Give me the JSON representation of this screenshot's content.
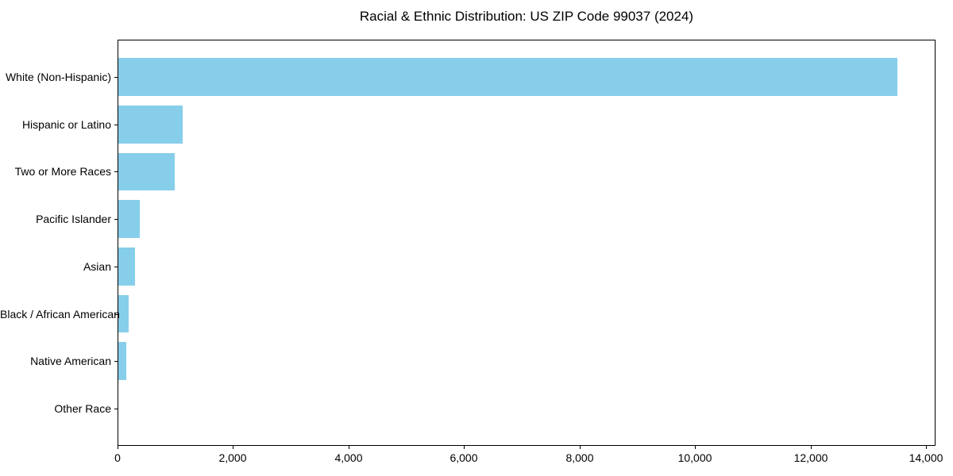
{
  "chart_data": {
    "type": "bar",
    "orientation": "horizontal",
    "title": "Racial & Ethnic Distribution: US ZIP Code 99037 (2024)",
    "categories": [
      "White (Non-Hispanic)",
      "Hispanic or Latino",
      "Two or More Races",
      "Pacific Islander",
      "Asian",
      "Black / African American",
      "Native American",
      "Other Race"
    ],
    "values": [
      13485,
      1120,
      970,
      370,
      295,
      185,
      140,
      0
    ],
    "xlabel": "",
    "ylabel": "",
    "xlim": [
      0,
      14159
    ],
    "xticks": [
      0,
      2000,
      4000,
      6000,
      8000,
      10000,
      12000,
      14000
    ],
    "xtick_labels": [
      "0",
      "2,000",
      "4,000",
      "6,000",
      "8,000",
      "10,000",
      "12,000",
      "14,000"
    ],
    "bar_color": "#87CEEB",
    "axis_color": "#000000",
    "background_color": "#ffffff",
    "grid": false,
    "legend": null
  }
}
